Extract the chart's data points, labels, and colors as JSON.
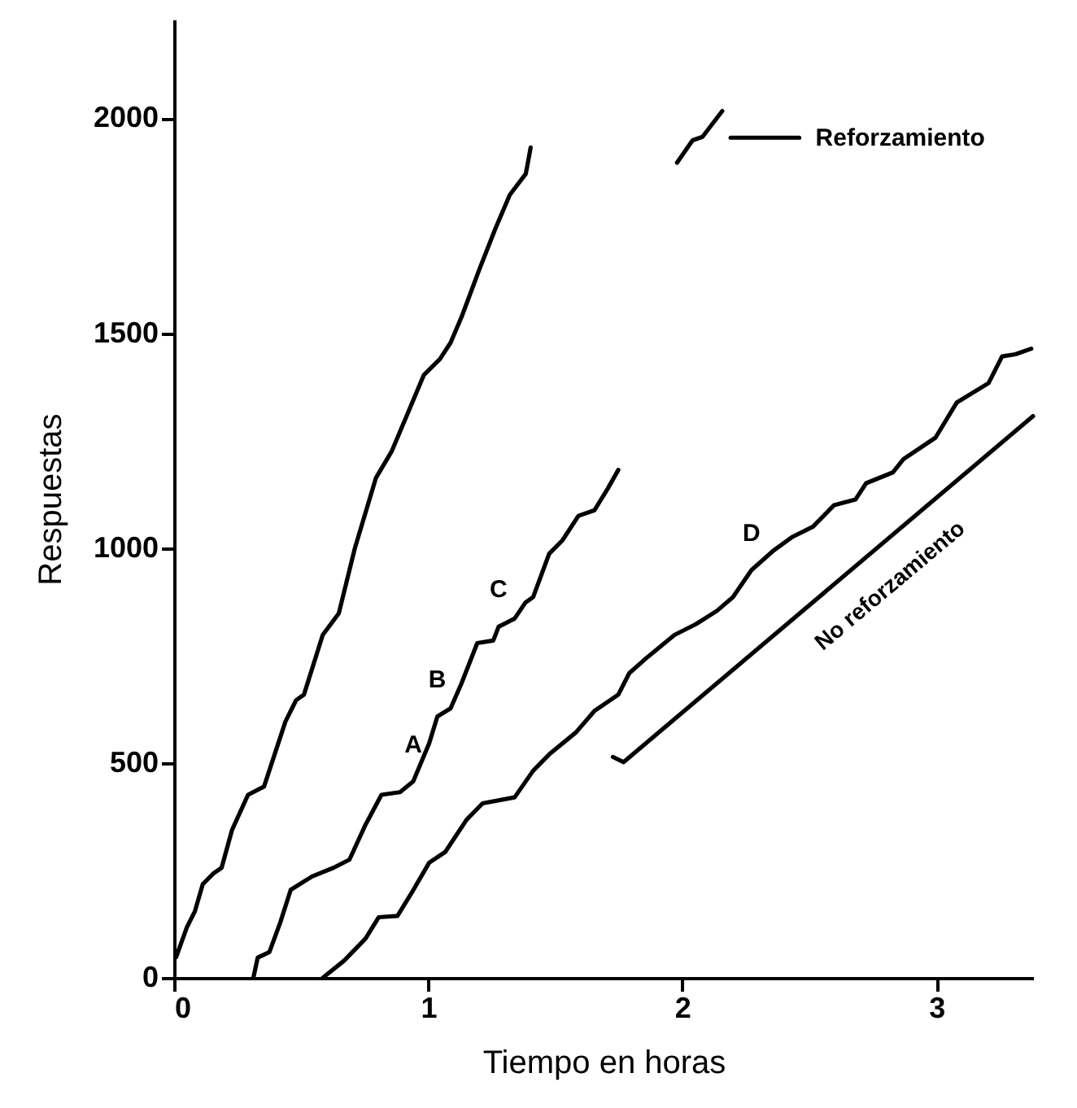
{
  "chart_data": {
    "type": "line",
    "xlabel": "Tiempo en horas",
    "ylabel": "Respuestas",
    "xlim": [
      0,
      3.38
    ],
    "ylim": [
      0,
      2230
    ],
    "xticks": [
      0,
      1,
      2,
      3
    ],
    "yticks": [
      0,
      500,
      1000,
      1500,
      2000
    ],
    "grid": false,
    "marker": "none",
    "line_style": "solid",
    "series": [
      {
        "color": "#000000",
        "x": [
          0.008,
          0.05,
          0.082,
          0.113,
          0.155,
          0.187,
          0.228,
          0.291,
          0.354,
          0.438,
          0.48,
          0.511,
          0.585,
          0.648,
          0.711,
          0.794,
          0.857,
          0.983,
          1.046,
          1.088,
          1.132,
          1.201,
          1.264,
          1.321,
          1.384,
          1.403
        ],
        "values": [
          48,
          117,
          155,
          218,
          243,
          256,
          344,
          426,
          445,
          596,
          646,
          659,
          798,
          848,
          999,
          1163,
          1226,
          1403,
          1440,
          1478,
          1539,
          1648,
          1743,
          1822,
          1871,
          1932
        ]
      },
      {
        "color": "#000000",
        "x": [
          0.312,
          0.329,
          0.375,
          0.418,
          0.459,
          0.543,
          0.627,
          0.69,
          0.753,
          0.816,
          0.889,
          0.941,
          1.004,
          1.036,
          1.088,
          1.13,
          1.193,
          1.256,
          1.277,
          1.34,
          1.382,
          1.413,
          1.476,
          1.528,
          1.591,
          1.654,
          1.706,
          1.748
        ],
        "values": [
          0,
          47,
          60,
          129,
          205,
          236,
          256,
          275,
          356,
          426,
          432,
          457,
          546,
          608,
          627,
          684,
          779,
          785,
          817,
          836,
          873,
          886,
          987,
          1018,
          1075,
          1088,
          1138,
          1182
        ]
      },
      {
        "color": "#000000",
        "x": [
          0.585,
          0.669,
          0.753,
          0.805,
          0.879,
          0.941,
          1.004,
          1.067,
          1.151,
          1.214,
          1.34,
          1.413,
          1.476,
          1.581,
          1.654,
          1.748,
          1.791,
          1.864,
          1.969,
          2.053,
          2.136,
          2.199,
          2.272,
          2.356,
          2.43,
          2.514,
          2.597,
          2.681,
          2.723,
          2.828,
          2.87,
          2.996,
          3.08,
          3.205,
          3.258,
          3.31,
          3.373
        ],
        "values": [
          0,
          40,
          91,
          141,
          144,
          204,
          268,
          293,
          368,
          406,
          420,
          482,
          520,
          571,
          621,
          659,
          709,
          747,
          798,
          823,
          854,
          886,
          949,
          993,
          1025,
          1050,
          1100,
          1113,
          1151,
          1176,
          1207,
          1257,
          1339,
          1384,
          1446,
          1451,
          1464
        ]
      },
      {
        "color": "#000000",
        "x": [
          1.979,
          2.04,
          2.079,
          2.157
        ],
        "values": [
          1897,
          1949,
          1957,
          2017
        ]
      },
      {
        "color": "#000000",
        "x": [
          2.46,
          2.19
        ],
        "values": [
          1955,
          1955
        ]
      },
      {
        "color": "#000000",
        "x": [
          1.727,
          1.769,
          3.38
        ],
        "values": [
          514,
          502,
          1307
        ]
      }
    ],
    "annotations": [
      {
        "text": "A",
        "x": 0.941,
        "y": 457
      },
      {
        "text": "B",
        "x": 1.036,
        "y": 608
      },
      {
        "text": "C",
        "x": 1.277,
        "y": 817
      },
      {
        "text": "D",
        "x": 2.272,
        "y": 949
      },
      {
        "text": "Reforzamiento",
        "x": 2.46,
        "y": 1955
      },
      {
        "text": "No reforzamiento",
        "x": 2.66,
        "y": 947
      }
    ]
  }
}
